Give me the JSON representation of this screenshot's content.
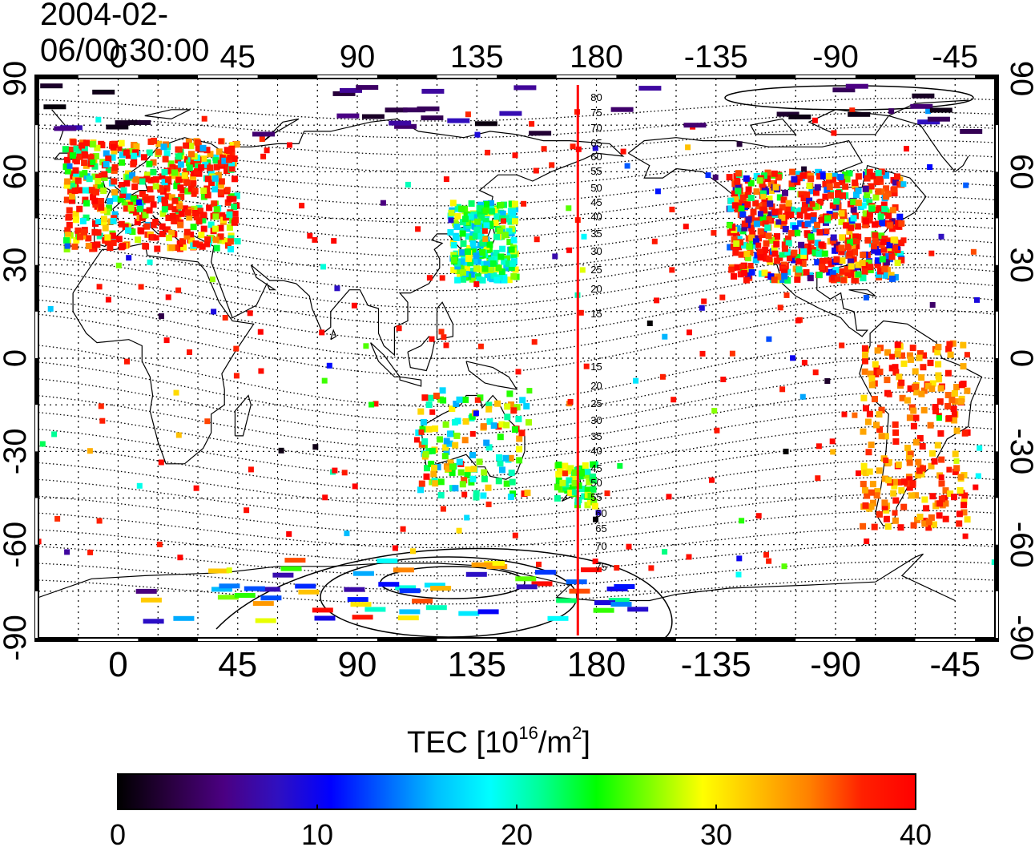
{
  "timestamp": "2004-02-06/00:30:00",
  "colorbar": {
    "title_prefix": "TEC  [10",
    "title_exp1": "16",
    "title_mid": "/m",
    "title_exp2": "2",
    "title_suffix": "]",
    "ticks": [
      "0",
      "10",
      "20",
      "30",
      "40"
    ],
    "stops": [
      "#000000",
      "#2a0040",
      "#4b0082",
      "#3010c0",
      "#0000ff",
      "#0060ff",
      "#00c0ff",
      "#00ffff",
      "#00ff90",
      "#00ff00",
      "#80ff00",
      "#ffff00",
      "#ffc000",
      "#ff8000",
      "#ff2000",
      "#ff0000"
    ]
  },
  "axes": {
    "top_lon_labels": [
      "0",
      "45",
      "90",
      "135",
      "180",
      "-135",
      "-90",
      "-45"
    ],
    "bottom_lon_labels": [
      "0",
      "45",
      "90",
      "135",
      "180",
      "-135",
      "-90",
      "-45"
    ],
    "left_lat_labels": [
      "90",
      "60",
      "30",
      "0",
      "-30",
      "-60",
      "-90"
    ],
    "right_lat_labels": [
      "90",
      "60",
      "30",
      "0",
      "-30",
      "-60",
      "-90"
    ]
  },
  "meridian_line": {
    "color": "#ff0000",
    "longitude": 173
  },
  "contour_labels_north": [
    "80",
    "75",
    "70",
    "65",
    "60",
    "55",
    "50",
    "45",
    "40",
    "35",
    "30",
    "25",
    "20",
    "15"
  ],
  "contour_labels_south": [
    "15",
    "20",
    "25",
    "30",
    "35",
    "40",
    "45",
    "50",
    "55",
    "60",
    "65",
    "70",
    "75"
  ],
  "map_data": {
    "type": "scatter-map",
    "value_range": [
      0,
      40
    ],
    "clusters": [
      {
        "region": "Europe",
        "lon": [
          -20,
          45
        ],
        "lat": [
          35,
          70
        ],
        "tec": [
          15,
          40
        ]
      },
      {
        "region": "North America",
        "lon": [
          -130,
          -65
        ],
        "lat": [
          25,
          60
        ],
        "tec": [
          5,
          40
        ]
      },
      {
        "region": "Japan",
        "lon": [
          125,
          150
        ],
        "lat": [
          25,
          50
        ],
        "tec": [
          15,
          30
        ]
      },
      {
        "region": "South America",
        "lon": [
          -80,
          -40
        ],
        "lat": [
          -55,
          5
        ],
        "tec": [
          30,
          40
        ]
      },
      {
        "region": "Australia",
        "lon": [
          113,
          155
        ],
        "lat": [
          -45,
          -10
        ],
        "tec": [
          15,
          40
        ]
      },
      {
        "region": "New Zealand",
        "lon": [
          165,
          180
        ],
        "lat": [
          -48,
          -34
        ],
        "tec": [
          20,
          30
        ]
      },
      {
        "region": "Antarctica",
        "lon": [
          10,
          200
        ],
        "lat": [
          -85,
          -65
        ],
        "tec": [
          5,
          40
        ]
      }
    ]
  }
}
